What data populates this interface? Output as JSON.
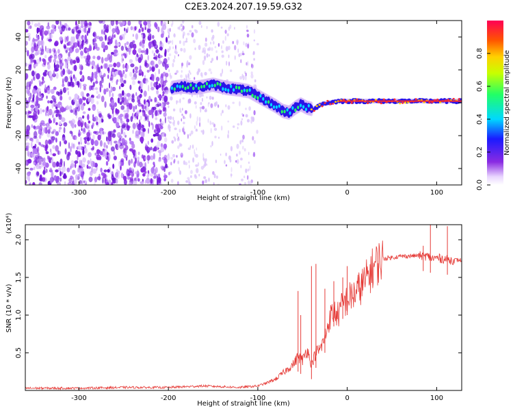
{
  "figure": {
    "title": "C2E3.2024.207.19.59.G32"
  },
  "colors": {
    "purple": "#8a2be2",
    "signal_red": "#e53935",
    "axis": "#000000"
  },
  "chart_data": [
    {
      "type": "heatmap",
      "xlabel": "Height of straight line (km)",
      "ylabel": "Frequency (Hz)",
      "xlim": [
        -360,
        128
      ],
      "ylim": [
        -50,
        50
      ],
      "xticks": [
        -300,
        -200,
        -100,
        0,
        100
      ],
      "yticks": [
        -40,
        -20,
        0,
        20,
        40
      ],
      "xtick_labels": [
        "-300",
        "-200",
        "-100",
        "0",
        "100"
      ],
      "ytick_labels": [
        "-40",
        "-20",
        "0",
        "20",
        "40"
      ],
      "colorbar": {
        "label": "Normalized spectral amplitude",
        "range": [
          0,
          1
        ],
        "ticks": [
          0.0,
          0.2,
          0.4,
          0.6,
          0.8
        ],
        "tick_labels": [
          "0.0",
          "0.2",
          "0.4",
          "0.6",
          "0.8"
        ],
        "colormap": "rainbow"
      },
      "signal_track": {
        "x": [
          -196,
          -185,
          -170,
          -160,
          -150,
          -135,
          -120,
          -110,
          -100,
          -90,
          -80,
          -72,
          -65,
          -58,
          -52,
          -45,
          -38,
          -30,
          -20,
          -10,
          0,
          20,
          50,
          80,
          110,
          128
        ],
        "y": [
          9,
          10,
          9,
          10,
          11,
          9,
          8,
          7,
          4,
          1,
          -2,
          -5,
          -6,
          -3,
          -1,
          -3,
          -4,
          -1,
          0,
          1,
          1,
          1,
          1,
          1,
          1,
          1
        ]
      },
      "noise_region_x": [
        -360,
        -200
      ]
    },
    {
      "type": "line",
      "xlabel": "Height of straight line (km)",
      "ylabel": "SNR (10 * v/v)",
      "y_multiplier": "(x10⁴)",
      "xlim": [
        -360,
        128
      ],
      "ylim": [
        0,
        2.2
      ],
      "xticks": [
        -300,
        -200,
        -100,
        0,
        100
      ],
      "yticks": [
        0.5,
        1.0,
        1.5,
        2.0
      ],
      "xtick_labels": [
        "-300",
        "-200",
        "-100",
        "0",
        "100"
      ],
      "ytick_labels": [
        "0.5",
        "1.0",
        "1.5",
        "2.0"
      ],
      "series": [
        {
          "color": "#e53935",
          "x": [
            -360,
            -300,
            -250,
            -200,
            -160,
            -120,
            -100,
            -90,
            -80,
            -70,
            -60,
            -55,
            -50,
            -45,
            -40,
            -35,
            -30,
            -25,
            -20,
            -15,
            -10,
            -5,
            0,
            10,
            20,
            30,
            40,
            60,
            80,
            90,
            95,
            100,
            110,
            115,
            120,
            128
          ],
          "y": [
            0.03,
            0.03,
            0.04,
            0.04,
            0.06,
            0.04,
            0.06,
            0.1,
            0.15,
            0.25,
            0.35,
            0.45,
            0.4,
            0.55,
            0.35,
            0.5,
            0.55,
            0.7,
            0.95,
            1.05,
            1.0,
            1.15,
            1.2,
            1.3,
            1.45,
            1.65,
            1.75,
            1.78,
            1.79,
            1.78,
            1.75,
            1.76,
            1.74,
            1.73,
            1.73,
            1.73
          ]
        }
      ],
      "spikes": [
        {
          "x": -55,
          "y": 1.32
        },
        {
          "x": -52,
          "y": 1.0
        },
        {
          "x": -40,
          "y": 1.65
        },
        {
          "x": -35,
          "y": 1.68
        },
        {
          "x": -25,
          "y": 1.35
        },
        {
          "x": -15,
          "y": 1.45
        },
        {
          "x": -5,
          "y": 1.5
        },
        {
          "x": 0,
          "y": 1.65
        },
        {
          "x": 85,
          "y": 1.92
        },
        {
          "x": 93,
          "y": 2.2
        },
        {
          "x": 112,
          "y": 2.18
        }
      ]
    }
  ]
}
